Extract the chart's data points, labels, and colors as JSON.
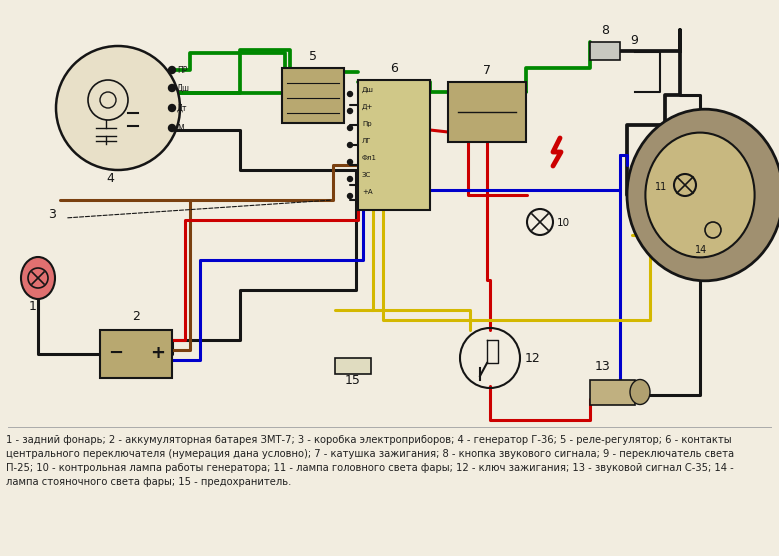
{
  "bg_color": "#f2ede0",
  "caption_line1": "1 - задний фонарь; 2 - аккумуляторная батарея ЗМТ-7; 3 - коробка электроприборов; 4 - генератор Г-36; 5 - реле-регулятор; 6 - контакты",
  "caption_line2": "центрального переключателя (нумерация дана условно); 7 - катушка зажигания; 8 - кнопка звукового сигнала; 9 - переключатель света",
  "caption_line3": "П-25; 10 - контрольная лампа работы генератора; 11 - лампа головного света фары; 12 - ключ зажигания; 13 - звуковой сигнал С-35; 14 -",
  "caption_line4": "лампа стояночного света фары; 15 - предохранитель.",
  "green": "#008800",
  "black": "#151515",
  "red": "#cc0000",
  "blue": "#0000cc",
  "yellow": "#d4b800",
  "brown": "#7a4010",
  "component_fill": "#b8a870",
  "fig_width": 7.79,
  "fig_height": 5.56,
  "dpi": 100
}
